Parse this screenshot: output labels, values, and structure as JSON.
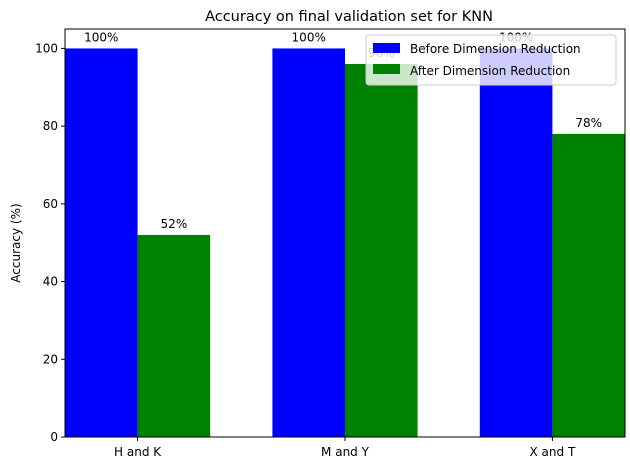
{
  "chart_data": {
    "type": "bar",
    "title": "Accuracy on final validation set for KNN",
    "xlabel": "",
    "ylabel": "Accuracy (%)",
    "categories": [
      "H and K",
      "M and Y",
      "X and T"
    ],
    "ylim": [
      0,
      105
    ],
    "yticks": [
      "0",
      "20",
      "40",
      "60",
      "80",
      "100"
    ],
    "grid": false,
    "legend_position": "top-right",
    "series": [
      {
        "name": "Before Dimension Reduction",
        "color": "#0000ff",
        "values": [
          100,
          100,
          100
        ],
        "labels": [
          "100%",
          "100%",
          "100%"
        ]
      },
      {
        "name": "After Dimension Reduction",
        "color": "#008000",
        "values": [
          52,
          96,
          78
        ],
        "labels": [
          "52%",
          "96%",
          "78%"
        ]
      }
    ]
  }
}
